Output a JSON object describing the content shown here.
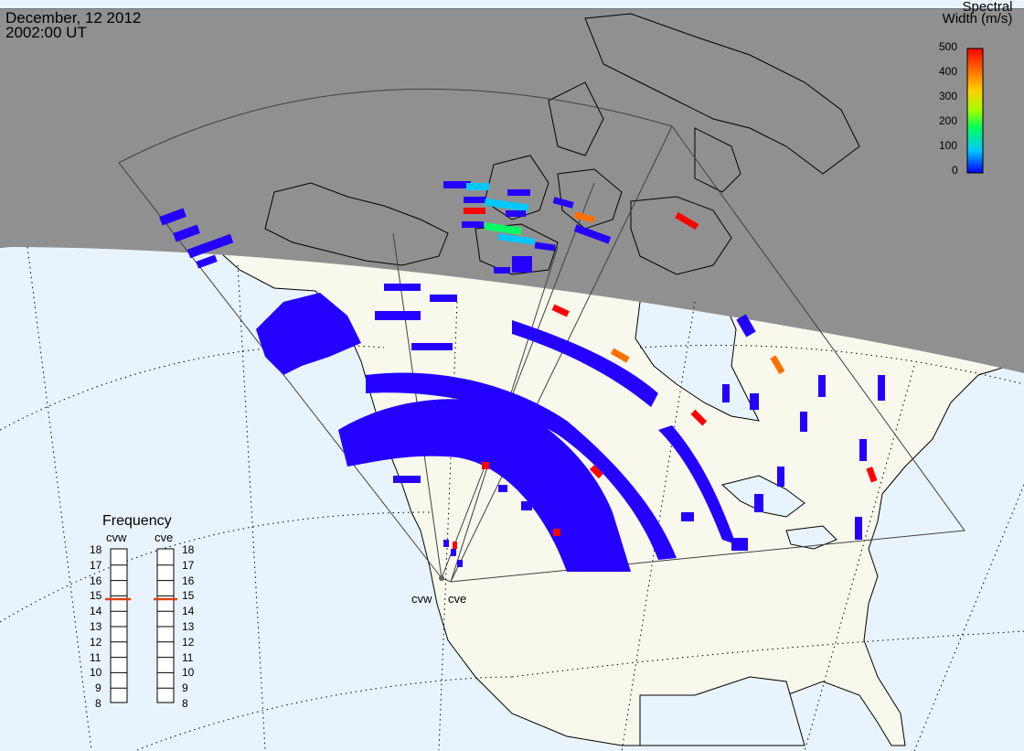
{
  "header": {
    "date": "December, 12 2012",
    "time": "2002:00 UT"
  },
  "colorbar": {
    "title_line1": "Spectral",
    "title_line2": "Width (m/s)",
    "ticks": [
      "500",
      "400",
      "300",
      "200",
      "100",
      "0"
    ],
    "colors": [
      "#0000ff",
      "#00c8ff",
      "#00ff60",
      "#a0ff00",
      "#ffd000",
      "#ff7000",
      "#ff0000"
    ]
  },
  "frequency": {
    "title": "Frequency",
    "radars": [
      {
        "label": "cvw",
        "value_mhz": 15
      },
      {
        "label": "cve",
        "value_mhz": 15
      }
    ],
    "ticks": [
      "18",
      "17",
      "16",
      "15",
      "14",
      "13",
      "12",
      "11",
      "10",
      "9",
      "8"
    ]
  },
  "map_labels": {
    "site_west": "cvw",
    "site_east": "cve"
  },
  "colors": {
    "ocean": "#e8f4fd",
    "land": "#f8f8ec",
    "night": "#909090",
    "echo_low": "#2400ff",
    "echo_high": "#ff0000",
    "indicator": "#e04010"
  }
}
